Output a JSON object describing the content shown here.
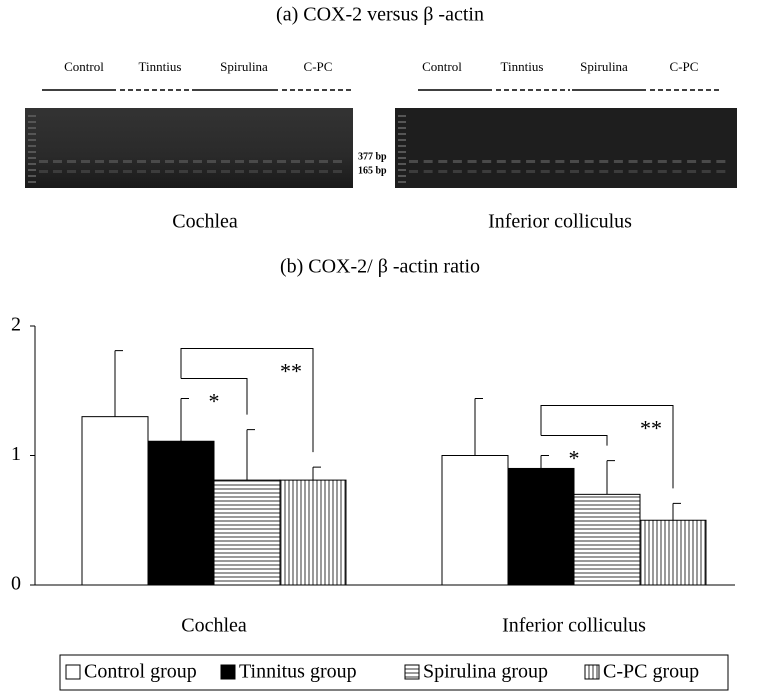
{
  "gel": {
    "title": "(a) COX-2 versus β -actin",
    "markers": [
      "377 bp",
      "165 bp"
    ],
    "panels": [
      {
        "label": "Cochlea",
        "lanes": [
          "Control",
          "Tinntius",
          "Spirulina",
          "C-PC"
        ]
      },
      {
        "label": "Inferior colliculus",
        "lanes": [
          "Control",
          "Tinntius",
          "Spirulina",
          "C-PC"
        ]
      }
    ]
  },
  "chart_data": {
    "type": "bar",
    "title": "(b) COX-2/ β -actin ratio",
    "categories": [
      "Cochlea",
      "Inferior colliculus"
    ],
    "series": [
      {
        "name": "Control group",
        "color": "#ffffff",
        "pattern": "solid",
        "values": [
          1.3,
          1.0
        ],
        "errors": [
          0.51,
          0.44
        ]
      },
      {
        "name": "Tinnitus group",
        "color": "#000000",
        "pattern": "solid",
        "values": [
          1.11,
          0.9
        ],
        "errors": [
          0.33,
          0.1
        ]
      },
      {
        "name": "Spirulina group",
        "color": "#ffffff",
        "pattern": "horizontal",
        "values": [
          0.81,
          0.7
        ],
        "errors": [
          0.39,
          0.26
        ]
      },
      {
        "name": "C-PC group",
        "color": "#ffffff",
        "pattern": "vertical",
        "values": [
          0.81,
          0.5
        ],
        "errors": [
          0.1,
          0.13
        ]
      }
    ],
    "significance": [
      [
        "*",
        "**"
      ],
      [
        "*",
        "**"
      ]
    ],
    "ylim": [
      0,
      2
    ],
    "yticks": [
      0,
      1,
      2
    ],
    "legend": "bottom"
  }
}
